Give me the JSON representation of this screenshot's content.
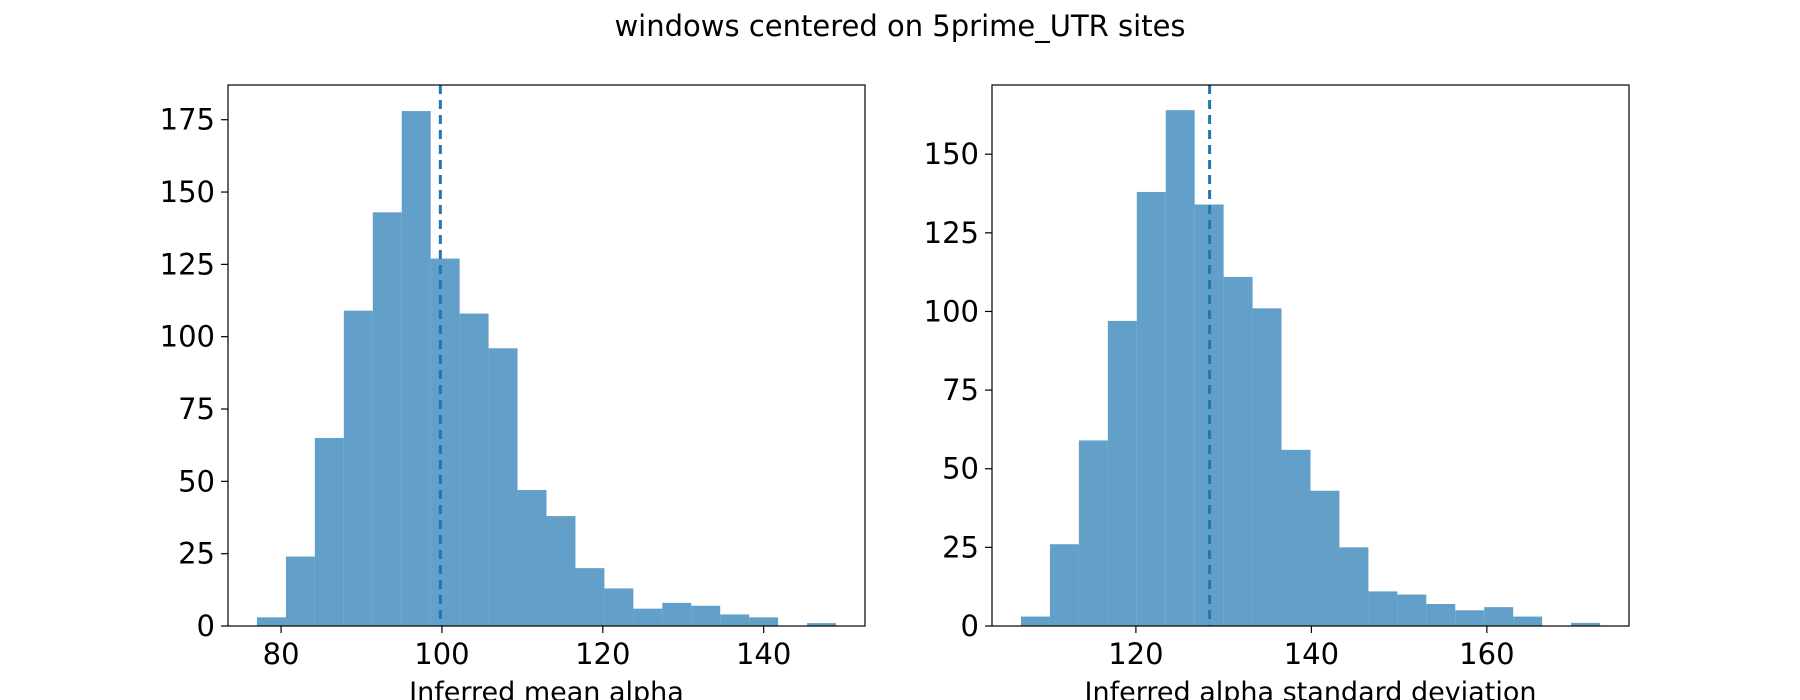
{
  "figure": {
    "title": "windows centered on 5prime_UTR sites"
  },
  "chart_data": [
    {
      "type": "bar",
      "subtype": "histogram",
      "title": "",
      "xlabel": "Inferred mean alpha",
      "ylabel": "",
      "xlim": [
        73.4,
        152.6
      ],
      "ylim": [
        0,
        187
      ],
      "xticks": [
        80,
        100,
        120,
        140
      ],
      "yticks": [
        0,
        25,
        50,
        75,
        100,
        125,
        150,
        175
      ],
      "bin_edges": [
        77.0,
        80.6,
        84.2,
        87.8,
        91.4,
        95.0,
        98.6,
        102.2,
        105.8,
        109.4,
        113.0,
        116.6,
        120.2,
        123.8,
        127.4,
        131.0,
        134.6,
        138.2,
        141.8,
        145.4,
        149.0
      ],
      "counts": [
        3,
        24,
        65,
        109,
        143,
        178,
        127,
        108,
        96,
        47,
        38,
        20,
        13,
        6,
        8,
        7,
        4,
        3,
        0,
        1
      ],
      "vline": 99.8,
      "vline_style": "dashed",
      "color": "#1f77b4",
      "grid": false
    },
    {
      "type": "bar",
      "subtype": "histogram",
      "title": "",
      "xlabel": "Inferred alpha standard deviation",
      "ylabel": "",
      "xlim": [
        103.6,
        176.2
      ],
      "ylim": [
        0,
        172
      ],
      "xticks": [
        120,
        140,
        160
      ],
      "yticks": [
        0,
        25,
        50,
        75,
        100,
        125,
        150
      ],
      "bin_edges": [
        106.9,
        110.2,
        113.5,
        116.8,
        120.1,
        123.4,
        126.7,
        130.0,
        133.3,
        136.6,
        139.9,
        143.2,
        146.5,
        149.8,
        153.1,
        156.4,
        159.7,
        163.0,
        166.3,
        169.6,
        172.9
      ],
      "counts": [
        3,
        26,
        59,
        97,
        138,
        164,
        134,
        111,
        101,
        56,
        43,
        25,
        11,
        10,
        7,
        5,
        6,
        3,
        0,
        1
      ],
      "vline": 128.4,
      "vline_style": "dashed",
      "color": "#1f77b4",
      "grid": false
    }
  ]
}
